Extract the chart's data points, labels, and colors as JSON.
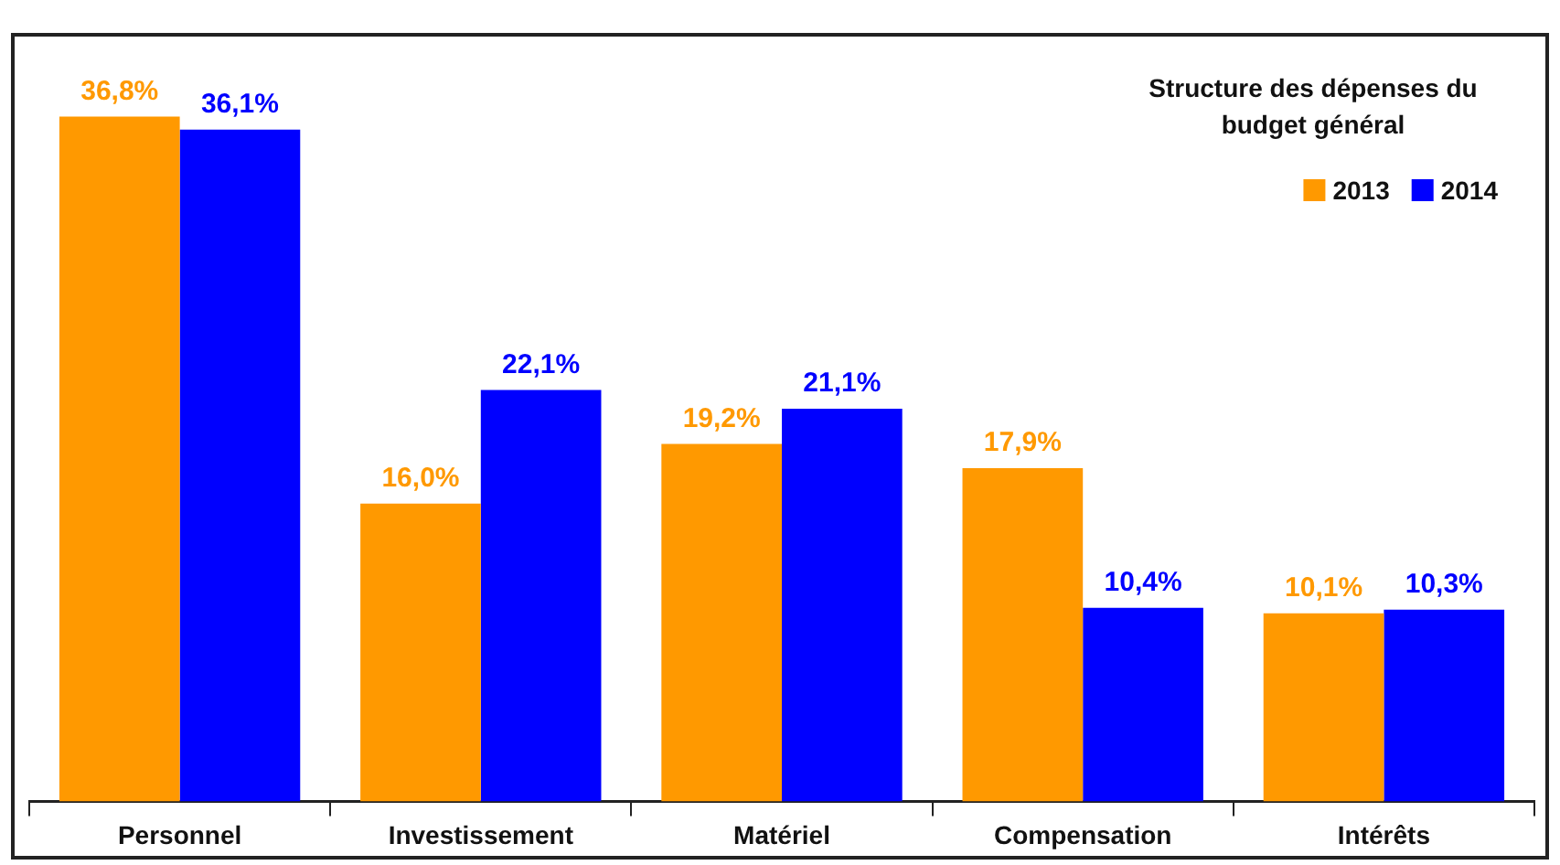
{
  "chart_data": {
    "type": "bar",
    "legend_title": "Structure des dépenses du budget général",
    "categories": [
      "Personnel",
      "Investissement",
      "Matériel",
      "Compensation",
      "Intérêts"
    ],
    "series": [
      {
        "name": "2013",
        "color": "#ff9900",
        "values": [
          36.8,
          16.0,
          19.2,
          17.9,
          10.1
        ],
        "value_labels": [
          "36,8%",
          "16,0%",
          "19,2%",
          "17,9%",
          "10,1%"
        ]
      },
      {
        "name": "2014",
        "color": "#0000ff",
        "values": [
          36.1,
          22.1,
          21.1,
          10.4,
          10.3
        ],
        "value_labels": [
          "36,1%",
          "22,1%",
          "21,1%",
          "10,4%",
          "10,3%"
        ]
      }
    ],
    "legend": "top right",
    "grid": false
  }
}
